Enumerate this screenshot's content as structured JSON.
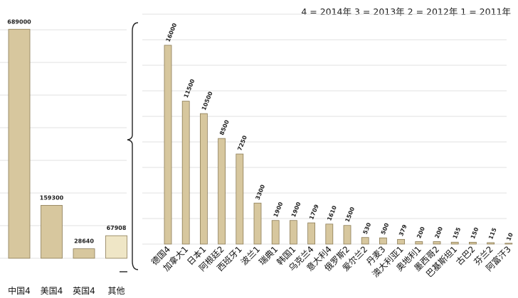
{
  "legend": "4 = 2014年  3 = 2013年  2 = 2012年  1 = 2011年",
  "colors": {
    "bar_fill": "#d7c79e",
    "bar_other_fill": "#efe6c6",
    "bar_stroke": "#8c7c56",
    "grid": "#e2e2e2"
  },
  "chart_data": [
    {
      "type": "bar",
      "categories": [
        "中国4",
        "美国4",
        "英国4",
        "其他"
      ],
      "values": [
        689000,
        159300,
        28640,
        67908
      ],
      "labels": [
        "689000",
        "159300",
        "28640",
        "67908"
      ],
      "ylim": [
        0,
        760000
      ],
      "grid": true
    },
    {
      "type": "bar",
      "categories": [
        "德国4",
        "加拿大1",
        "日本1",
        "阿根廷2",
        "西班牙1",
        "波兰1",
        "瑞典1",
        "韩国1",
        "乌克兰4",
        "意大利4",
        "俄罗斯2",
        "爱尔兰2",
        "丹麦3",
        "澳大利亚1",
        "奥地利1",
        "墨西哥2",
        "巴基斯坦1",
        "古巴2",
        "芬兰2",
        "阿富汗3"
      ],
      "values": [
        16000,
        11500,
        10500,
        8500,
        7250,
        3300,
        1900,
        1900,
        1709,
        1610,
        1500,
        530,
        500,
        379,
        200,
        200,
        155,
        150,
        115,
        10
      ],
      "labels": [
        "16000",
        "11500",
        "10500",
        "8500",
        "7250",
        "3300",
        "1900",
        "1900",
        "1709",
        "1610",
        "1500",
        "530",
        "500",
        "379",
        "200",
        "200",
        "155",
        "150",
        "115",
        "10"
      ],
      "ylim": [
        0,
        18500
      ],
      "grid": true
    }
  ]
}
